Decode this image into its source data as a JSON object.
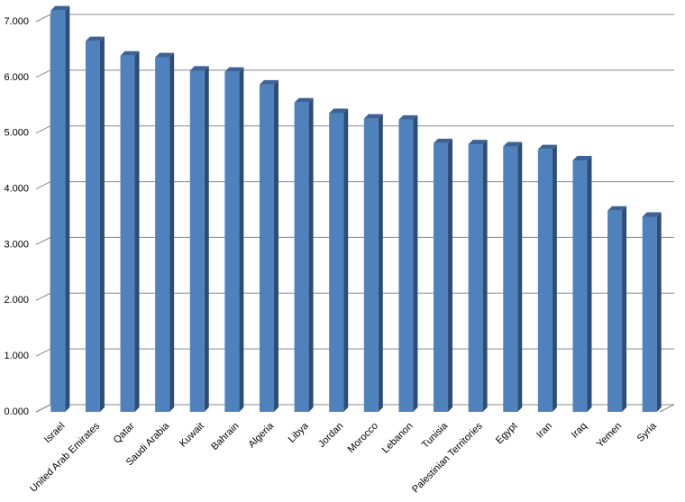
{
  "chart_data": {
    "type": "bar3d",
    "categories": [
      "Israel",
      "United Arab Emirates",
      "Qatar",
      "Saudi Arabia",
      "Kuwait",
      "Bahrain",
      "Algeria",
      "Libya",
      "Jordan",
      "Morocco",
      "Lebanon",
      "Tunisia",
      "Palestinian Territories",
      "Egypt",
      "Iran",
      "Iraq",
      "Yemen",
      "Syria"
    ],
    "values": [
      7.2,
      6.65,
      6.39,
      6.36,
      6.12,
      6.1,
      5.87,
      5.55,
      5.36,
      5.26,
      5.24,
      4.82,
      4.8,
      4.76,
      4.71,
      4.51,
      3.61,
      3.5
    ],
    "color": "#4f81bd",
    "ylim": [
      0,
      7
    ],
    "yticks": [
      {
        "value": 0,
        "label": "0.000"
      },
      {
        "value": 1,
        "label": "1.000"
      },
      {
        "value": 2,
        "label": "2.000"
      },
      {
        "value": 3,
        "label": "3.000"
      },
      {
        "value": 4,
        "label": "4.000"
      },
      {
        "value": 5,
        "label": "5.000"
      },
      {
        "value": 6,
        "label": "6.000"
      },
      {
        "value": 7,
        "label": "7.000"
      }
    ],
    "grid": true
  }
}
